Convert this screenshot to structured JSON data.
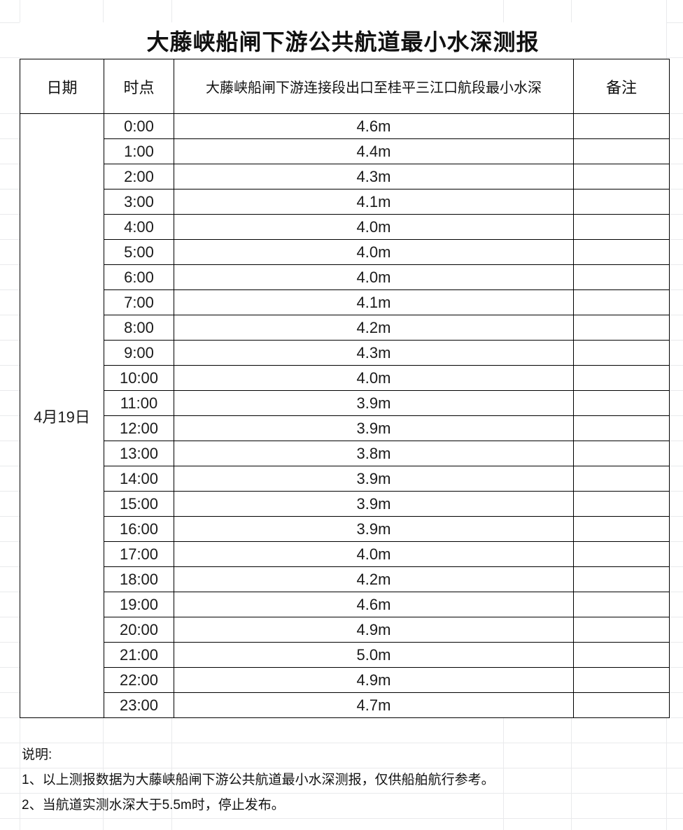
{
  "title": "大藤峡船闸下游公共航道最小水深测报",
  "table": {
    "headers": {
      "date": "日期",
      "time": "时点",
      "depth": "大藤峡船闸下游连接段出口至桂平三江口航段最小水深",
      "remark": "备注"
    },
    "date": "4月19日",
    "rows": [
      {
        "time": "0:00",
        "depth": "4.6m",
        "remark": ""
      },
      {
        "time": "1:00",
        "depth": "4.4m",
        "remark": ""
      },
      {
        "time": "2:00",
        "depth": "4.3m",
        "remark": ""
      },
      {
        "time": "3:00",
        "depth": "4.1m",
        "remark": ""
      },
      {
        "time": "4:00",
        "depth": "4.0m",
        "remark": ""
      },
      {
        "time": "5:00",
        "depth": "4.0m",
        "remark": ""
      },
      {
        "time": "6:00",
        "depth": "4.0m",
        "remark": ""
      },
      {
        "time": "7:00",
        "depth": "4.1m",
        "remark": ""
      },
      {
        "time": "8:00",
        "depth": "4.2m",
        "remark": ""
      },
      {
        "time": "9:00",
        "depth": "4.3m",
        "remark": ""
      },
      {
        "time": "10:00",
        "depth": "4.0m",
        "remark": ""
      },
      {
        "time": "11:00",
        "depth": "3.9m",
        "remark": ""
      },
      {
        "time": "12:00",
        "depth": "3.9m",
        "remark": ""
      },
      {
        "time": "13:00",
        "depth": "3.8m",
        "remark": ""
      },
      {
        "time": "14:00",
        "depth": "3.9m",
        "remark": ""
      },
      {
        "time": "15:00",
        "depth": "3.9m",
        "remark": ""
      },
      {
        "time": "16:00",
        "depth": "3.9m",
        "remark": ""
      },
      {
        "time": "17:00",
        "depth": "4.0m",
        "remark": ""
      },
      {
        "time": "18:00",
        "depth": "4.2m",
        "remark": ""
      },
      {
        "time": "19:00",
        "depth": "4.6m",
        "remark": ""
      },
      {
        "time": "20:00",
        "depth": "4.9m",
        "remark": ""
      },
      {
        "time": "21:00",
        "depth": "5.0m",
        "remark": ""
      },
      {
        "time": "22:00",
        "depth": "4.9m",
        "remark": ""
      },
      {
        "time": "23:00",
        "depth": "4.7m",
        "remark": ""
      }
    ]
  },
  "notes": {
    "label": "说明:",
    "items": [
      "1、以上测报数据为大藤峡船闸下游公共航道最小水深测报，仅供船舶航行参考。",
      "2、当航道实测水深大于5.5m时，停止发布。"
    ]
  },
  "colors": {
    "border": "#000000",
    "grid": "#e9eaec",
    "text": "#1a1a1a",
    "background": "#ffffff"
  }
}
